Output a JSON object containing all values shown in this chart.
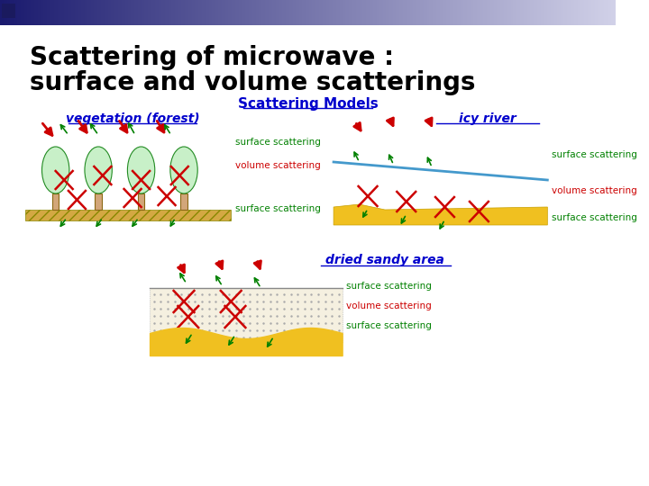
{
  "title_line1": "Scattering of microwave :",
  "title_line2": "surface and volume scatterings",
  "subtitle": "Scattering Models",
  "veg_label": "vegetation (forest)",
  "icy_label": "icy river",
  "dry_label": "dried sandy area",
  "surface_scatter": "surface scattering",
  "volume_scatter": "volume scattering",
  "bg_color": "#ffffff",
  "title_color": "#000000",
  "subtitle_color": "#0000cc",
  "veg_color": "#0000cc",
  "icy_color": "#0000cc",
  "dry_color": "#0000cc",
  "green_scatter": "#008000",
  "red_scatter": "#cc0000",
  "tree_fill": "#c8f0c8",
  "tree_trunk": "#d2a679",
  "ground_hatch": "#d4a843",
  "ice_color": "#4499cc",
  "sand_color": "#f0c020"
}
